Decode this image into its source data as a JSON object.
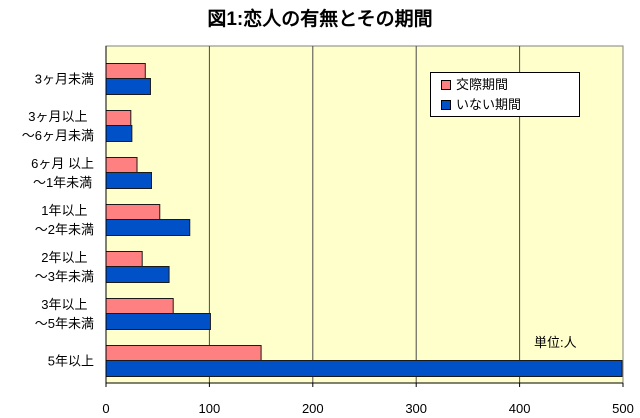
{
  "chart_data": {
    "type": "bar",
    "orientation": "horizontal",
    "title": "図1:恋人の有無とその期間",
    "categories": [
      "3ヶ月未満",
      "3ヶ月以上\n～6ヶ月未満",
      "6ヶ月 以上\n～1年未満",
      "1年以上\n～2年未満",
      "2年以上\n～3年未満",
      "3年以上\n～5年未満",
      "5年以上"
    ],
    "series": [
      {
        "name": "交際期間",
        "color": "#FF8080",
        "values": [
          38,
          24,
          30,
          52,
          35,
          65,
          150
        ]
      },
      {
        "name": "いない期間",
        "color": "#0050C8",
        "values": [
          43,
          25,
          44,
          81,
          61,
          101,
          499
        ]
      }
    ],
    "xlim": [
      0,
      500
    ],
    "x_ticks": [
      0,
      100,
      200,
      300,
      400,
      500
    ],
    "grid": {
      "vertical": true,
      "horizontal": false
    },
    "legend": "top-right",
    "annotation": "単位:人",
    "plot_background": "#FFFFCC"
  }
}
